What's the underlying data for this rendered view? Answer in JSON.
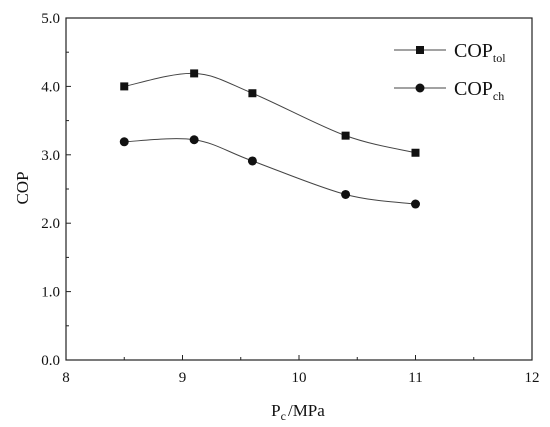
{
  "chart_data": {
    "type": "line",
    "xlabel": "P",
    "xlabel_subscript": "c",
    "xlabel_unit": "/MPa",
    "ylabel": "COP",
    "xlim": [
      8,
      12
    ],
    "ylim": [
      0.0,
      5.0
    ],
    "x_ticks": [
      "8",
      "9",
      "10",
      "11",
      "12"
    ],
    "y_ticks": [
      "0.0",
      "1.0",
      "2.0",
      "3.0",
      "4.0",
      "5.0"
    ],
    "grid": false,
    "legend_position": "top-right",
    "smooth": true,
    "series": [
      {
        "name": "COP",
        "name_subscript": "tol",
        "marker": "square",
        "x": [
          8.5,
          9.1,
          9.6,
          10.4,
          11.0
        ],
        "values": [
          4.0,
          4.19,
          3.9,
          3.28,
          3.03
        ]
      },
      {
        "name": "COP",
        "name_subscript": "ch",
        "marker": "circle",
        "x": [
          8.5,
          9.1,
          9.6,
          10.4,
          11.0
        ],
        "values": [
          3.19,
          3.22,
          2.91,
          2.42,
          2.28
        ]
      }
    ]
  }
}
